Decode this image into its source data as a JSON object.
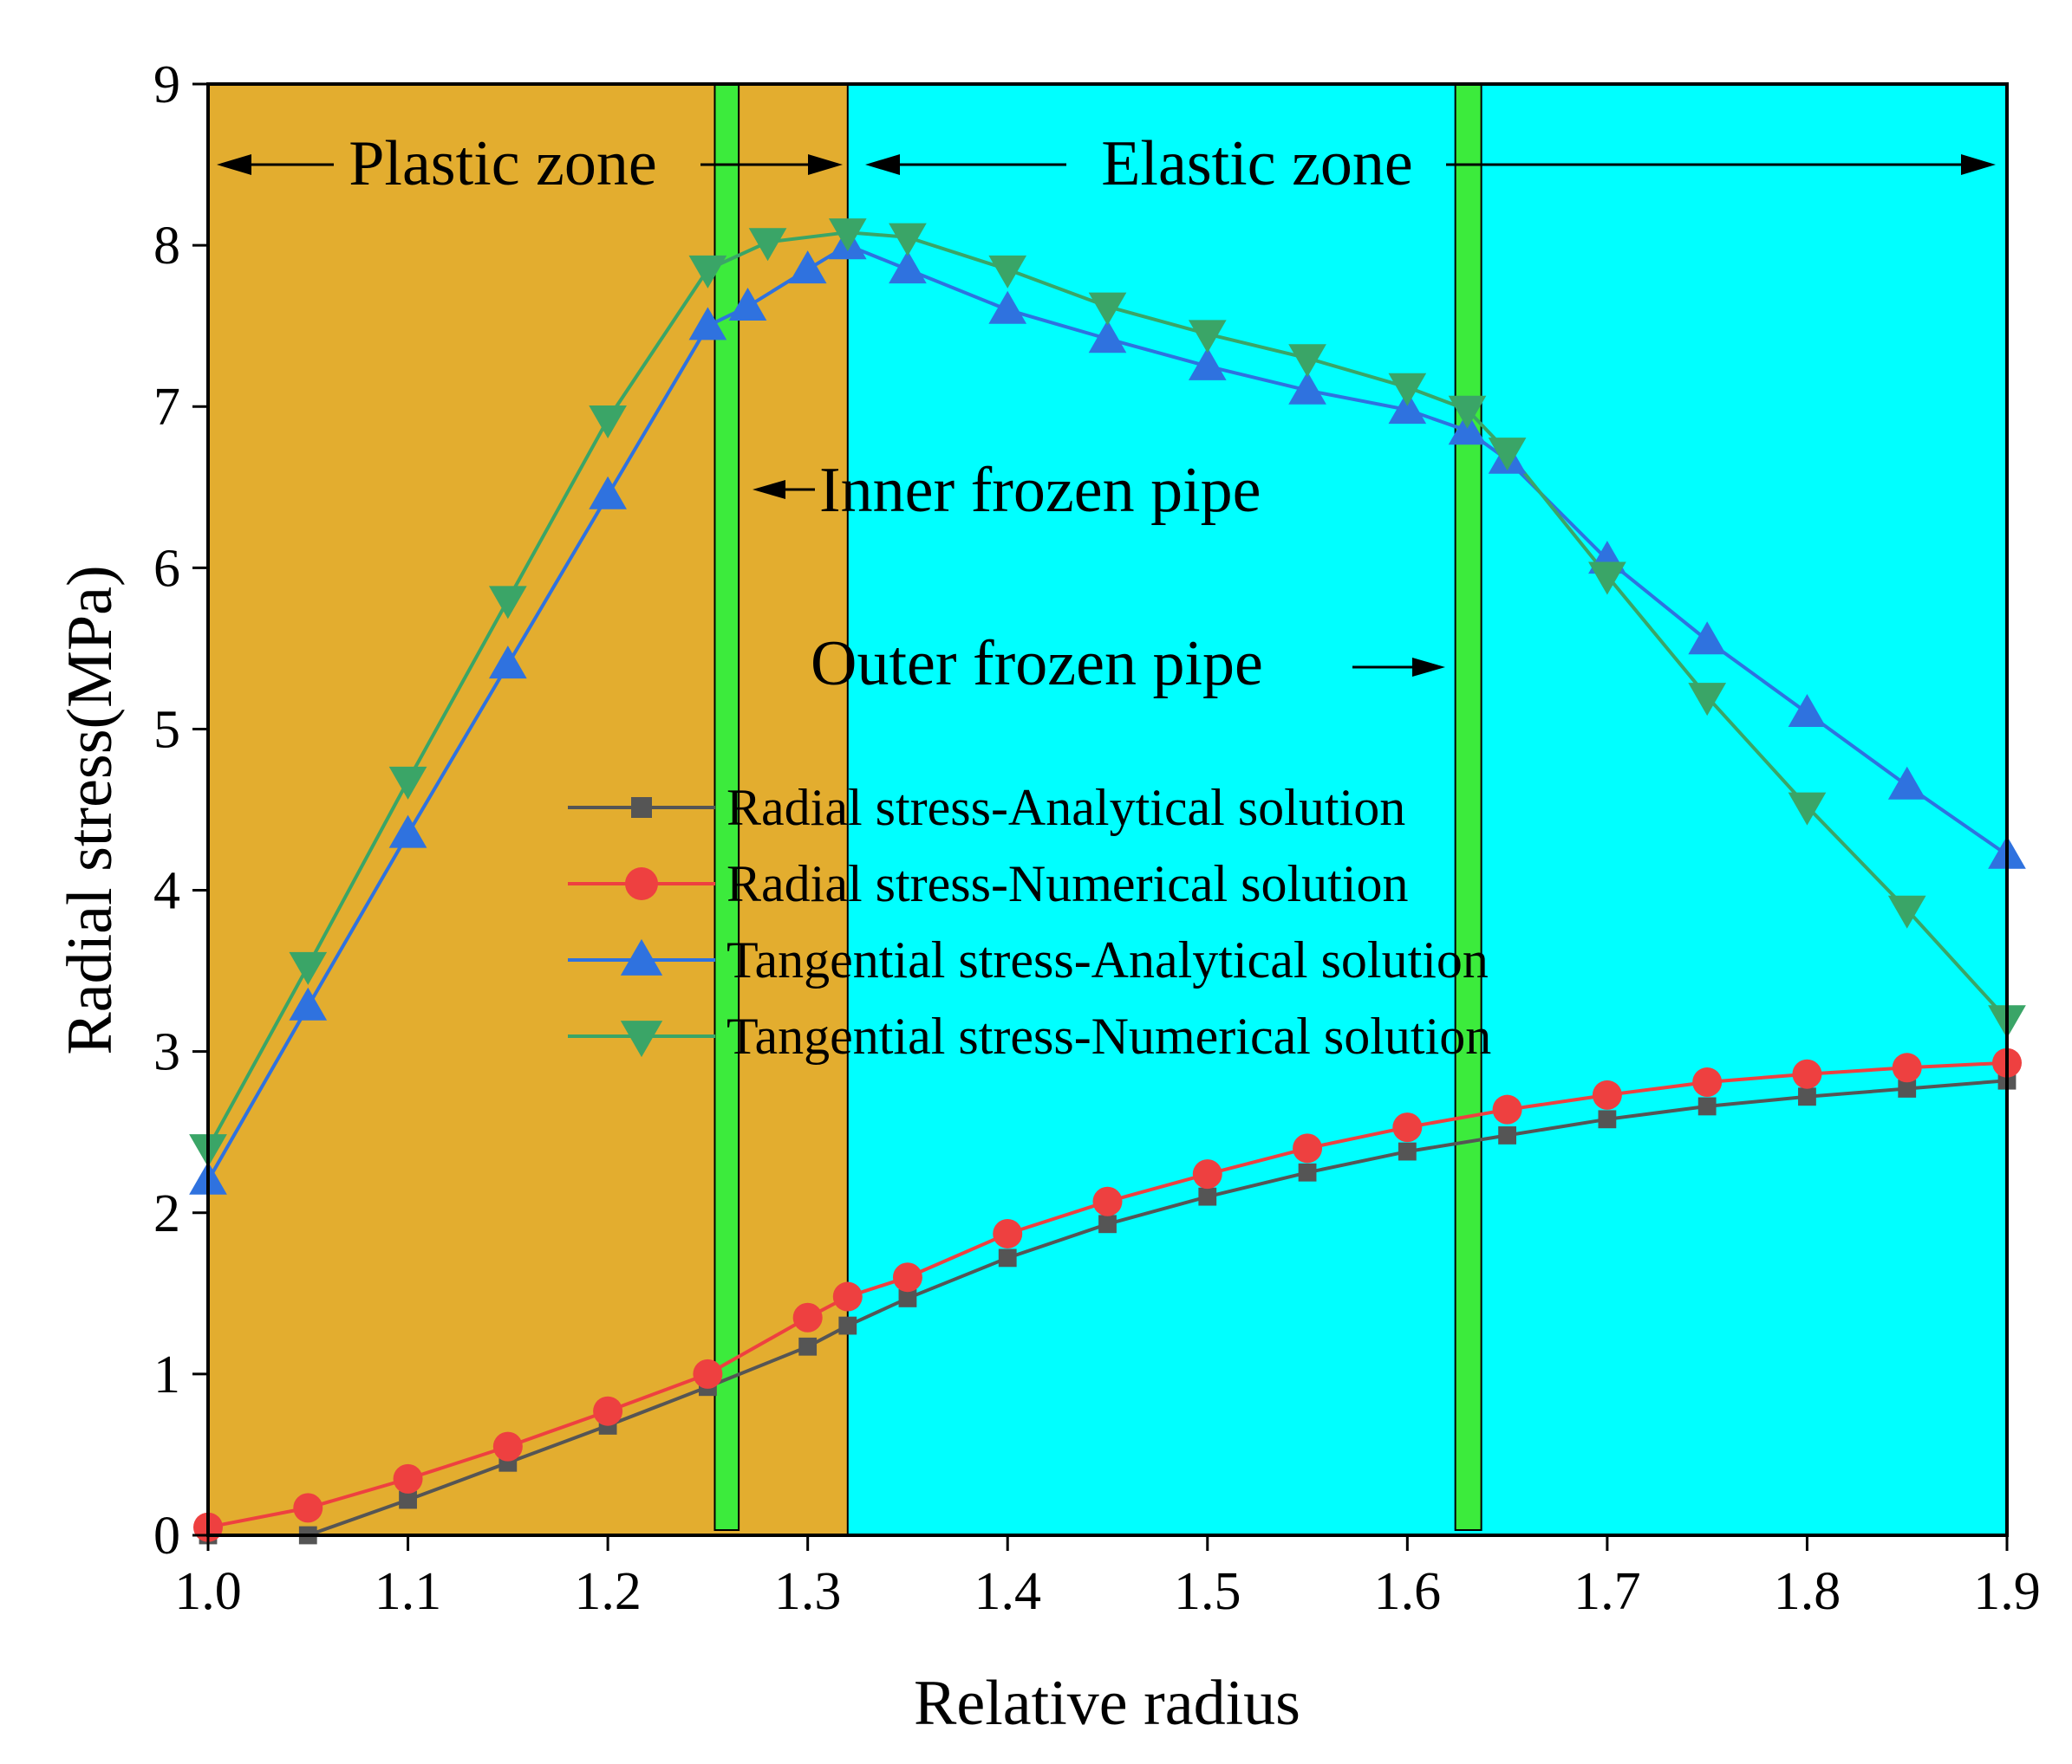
{
  "chart_data": {
    "type": "line",
    "xlabel": "Relative radius",
    "ylabel": "Radial stress(MPa)",
    "xlim": [
      1.0,
      1.9
    ],
    "ylim": [
      0,
      9
    ],
    "xticks": [
      "1.0",
      "1.1",
      "1.2",
      "1.3",
      "1.4",
      "1.5",
      "1.6",
      "1.7",
      "1.8",
      "1.9"
    ],
    "yticks": [
      "0",
      "1",
      "2",
      "3",
      "4",
      "5",
      "6",
      "7",
      "8",
      "9"
    ],
    "grid": false,
    "legend_position": "center",
    "zones": [
      {
        "name": "Plastic zone",
        "x_range": [
          1.0,
          1.32
        ],
        "color": "#E3AD2F"
      },
      {
        "name": "Elastic zone",
        "x_range": [
          1.32,
          1.9
        ],
        "color": "#00FFFF"
      }
    ],
    "pipes": [
      {
        "label": "Inner frozen pipe",
        "x_range": [
          1.2535,
          1.2655
        ],
        "color": "#3CEB3C"
      },
      {
        "label": "Outer frozen pipe",
        "x_range": [
          1.624,
          1.637
        ],
        "color": "#3CEB3C"
      }
    ],
    "annotations": {
      "plastic": "Plastic zone",
      "elastic": "Elastic zone",
      "inner_pipe": "Inner frozen pipe",
      "outer_pipe": "Outer frozen pipe"
    },
    "series": [
      {
        "name": "Radial stress-Analytical solution",
        "marker": "square",
        "color": "#555555",
        "points": [
          [
            1.0,
            0.0
          ],
          [
            1.05,
            0.0
          ],
          [
            1.1,
            0.22
          ],
          [
            1.15,
            0.45
          ],
          [
            1.2,
            0.68
          ],
          [
            1.25,
            0.92
          ],
          [
            1.3,
            1.17
          ],
          [
            1.32,
            1.3
          ],
          [
            1.35,
            1.47
          ],
          [
            1.4,
            1.72
          ],
          [
            1.45,
            1.93
          ],
          [
            1.5,
            2.1
          ],
          [
            1.55,
            2.25
          ],
          [
            1.6,
            2.38
          ],
          [
            1.65,
            2.48
          ],
          [
            1.7,
            2.58
          ],
          [
            1.75,
            2.66
          ],
          [
            1.8,
            2.72
          ],
          [
            1.85,
            2.77
          ],
          [
            1.9,
            2.82
          ]
        ]
      },
      {
        "name": "Radial stress-Numerical solution",
        "marker": "circle",
        "color": "#EE4040",
        "points": [
          [
            1.0,
            0.05
          ],
          [
            1.05,
            0.17
          ],
          [
            1.1,
            0.35
          ],
          [
            1.15,
            0.55
          ],
          [
            1.2,
            0.77
          ],
          [
            1.25,
            1.0
          ],
          [
            1.3,
            1.35
          ],
          [
            1.32,
            1.48
          ],
          [
            1.35,
            1.6
          ],
          [
            1.4,
            1.87
          ],
          [
            1.45,
            2.07
          ],
          [
            1.5,
            2.24
          ],
          [
            1.55,
            2.4
          ],
          [
            1.6,
            2.53
          ],
          [
            1.65,
            2.64
          ],
          [
            1.7,
            2.73
          ],
          [
            1.75,
            2.81
          ],
          [
            1.8,
            2.86
          ],
          [
            1.85,
            2.9
          ],
          [
            1.9,
            2.93
          ]
        ]
      },
      {
        "name": "Tangential stress-Analytical solution",
        "marker": "triangle-up",
        "color": "#2F72DF",
        "points": [
          [
            1.0,
            2.2
          ],
          [
            1.05,
            3.28
          ],
          [
            1.1,
            4.35
          ],
          [
            1.15,
            5.4
          ],
          [
            1.2,
            6.45
          ],
          [
            1.25,
            7.5
          ],
          [
            1.27,
            7.62
          ],
          [
            1.3,
            7.85
          ],
          [
            1.32,
            8.0
          ],
          [
            1.35,
            7.85
          ],
          [
            1.4,
            7.6
          ],
          [
            1.45,
            7.42
          ],
          [
            1.5,
            7.25
          ],
          [
            1.55,
            7.1
          ],
          [
            1.6,
            6.98
          ],
          [
            1.63,
            6.85
          ],
          [
            1.65,
            6.67
          ],
          [
            1.7,
            6.05
          ],
          [
            1.75,
            5.55
          ],
          [
            1.8,
            5.1
          ],
          [
            1.85,
            4.65
          ],
          [
            1.9,
            4.22
          ]
        ]
      },
      {
        "name": "Tangential stress-Numerical solution",
        "marker": "triangle-down",
        "color": "#3AA567",
        "points": [
          [
            1.0,
            2.4
          ],
          [
            1.05,
            3.53
          ],
          [
            1.1,
            4.68
          ],
          [
            1.15,
            5.8
          ],
          [
            1.2,
            6.92
          ],
          [
            1.25,
            7.85
          ],
          [
            1.28,
            8.02
          ],
          [
            1.32,
            8.08
          ],
          [
            1.35,
            8.05
          ],
          [
            1.4,
            7.85
          ],
          [
            1.45,
            7.62
          ],
          [
            1.5,
            7.45
          ],
          [
            1.55,
            7.3
          ],
          [
            1.6,
            7.12
          ],
          [
            1.63,
            6.98
          ],
          [
            1.65,
            6.72
          ],
          [
            1.7,
            5.95
          ],
          [
            1.75,
            5.2
          ],
          [
            1.8,
            4.52
          ],
          [
            1.85,
            3.88
          ],
          [
            1.9,
            3.2
          ]
        ]
      }
    ]
  }
}
